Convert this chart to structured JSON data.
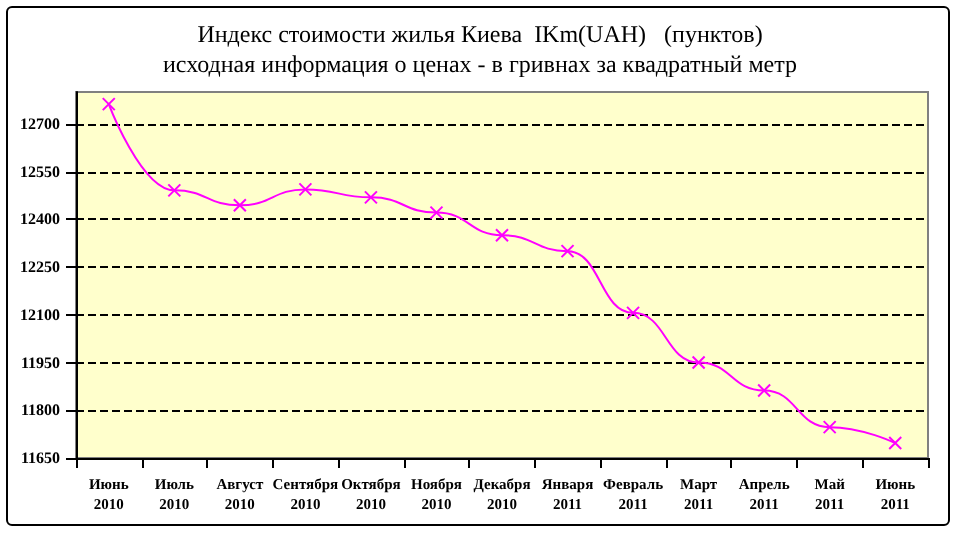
{
  "chart_data": {
    "type": "line",
    "title": "Индекс стоимости жилья Киева  IKm(UAH)   (пунктов)",
    "subtitle": "исходная информация о ценах - в гривнах за квадратный метр",
    "categories": [
      "Июнь\n2010",
      "Июль\n2010",
      "Август\n2010",
      "Сентября\n2010",
      "Октября\n2010",
      "Ноября\n2010",
      "Декабря\n2010",
      "Января\n2011",
      "Февраль\n2011",
      "Март\n2011",
      "Апрель\n2011",
      "Май\n2011",
      "Июнь\n2011"
    ],
    "series": [
      {
        "color": "#ff00ff",
        "values": [
          12762,
          12491,
          12444,
          12494,
          12469,
          12421,
          12350,
          12300,
          12106,
          11950,
          11862,
          11747,
          11697
        ]
      }
    ],
    "ylim": [
      11650,
      12800
    ],
    "yticks": [
      11650,
      11800,
      11950,
      12100,
      12250,
      12400,
      12550,
      12700
    ],
    "grid": "y",
    "marker": "cross",
    "line_style": "solid"
  }
}
